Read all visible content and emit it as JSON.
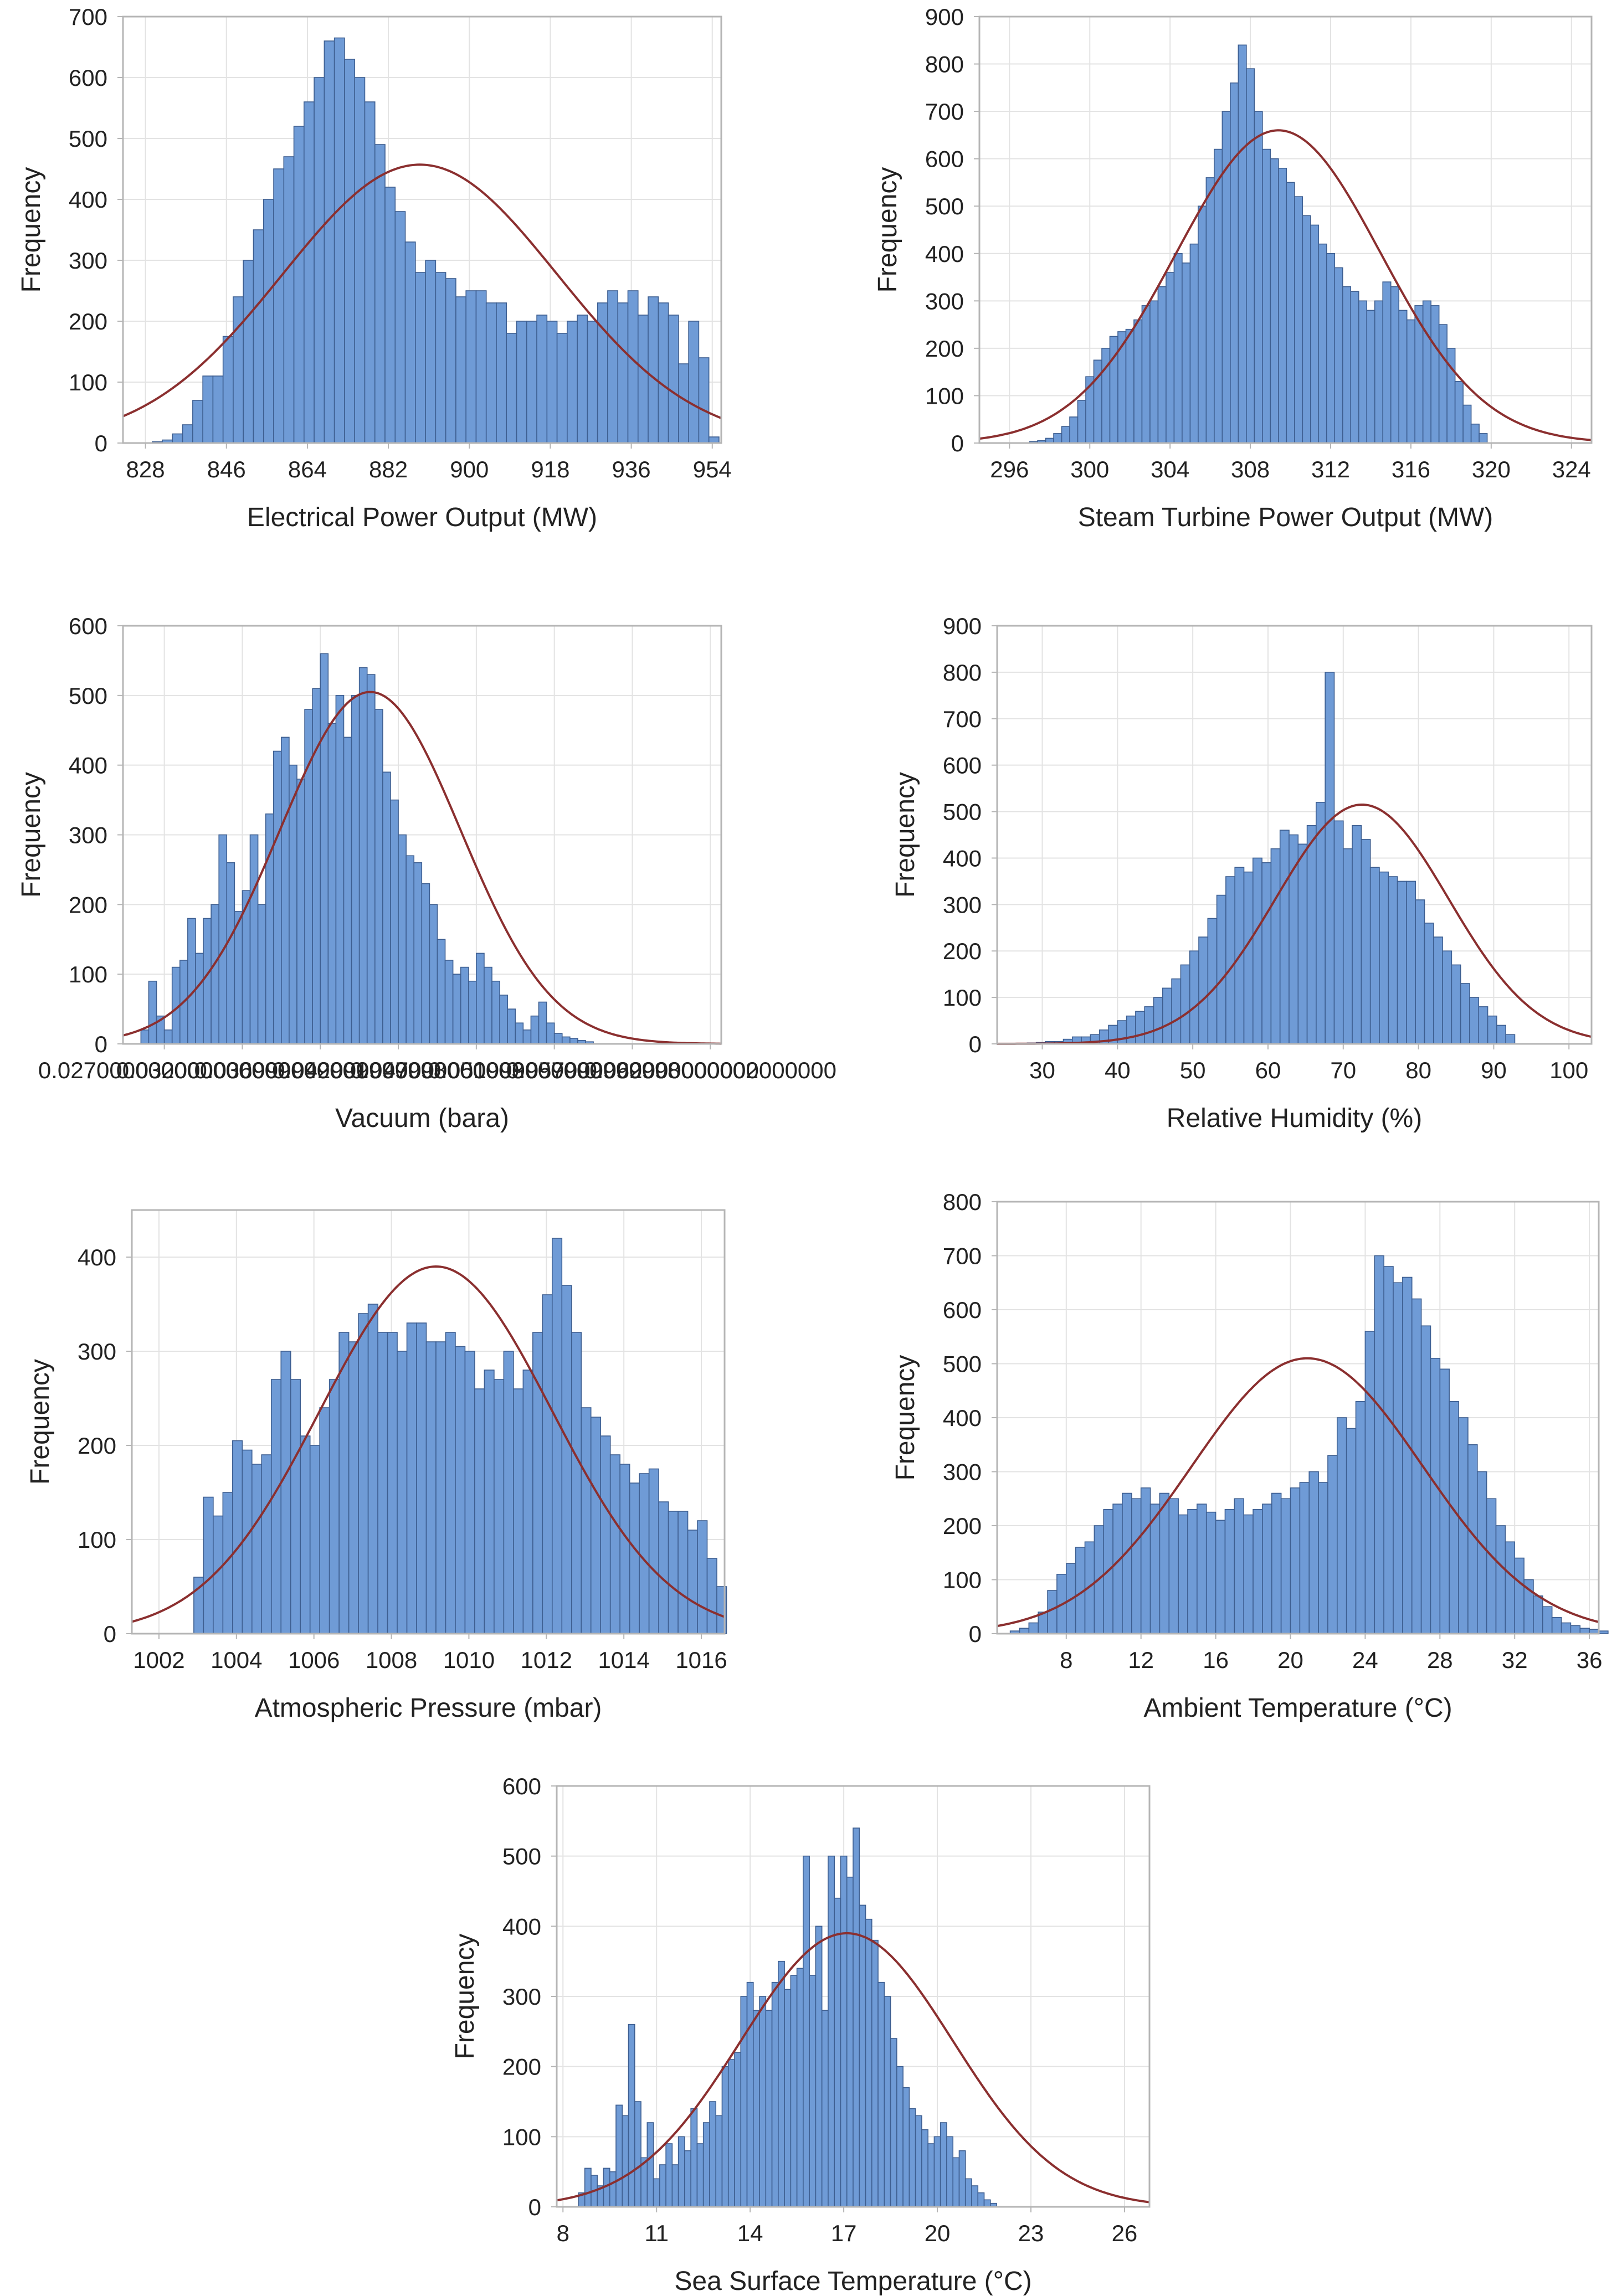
{
  "figure": {
    "colors": {
      "bar": "#6f9bd6",
      "bar_edge": "#3e5f91",
      "fit": "#8b2f2f",
      "grid": "#e3e3e3",
      "frame": "#b5b5b5",
      "text": "#222222"
    }
  },
  "chart_data": [
    {
      "type": "bar",
      "title": "",
      "xlabel": "Electrical Power Output (MW)",
      "ylabel": "Frequency",
      "xlim": [
        823,
        956
      ],
      "ylim": [
        0,
        700
      ],
      "xticks": [
        828,
        846,
        864,
        882,
        900,
        918,
        936,
        954
      ],
      "yticks": [
        0,
        100,
        200,
        300,
        400,
        500,
        600,
        700
      ],
      "bin_start": 829.5,
      "bin_width": 2.25,
      "values": [
        2,
        5,
        15,
        30,
        70,
        110,
        110,
        175,
        240,
        300,
        350,
        400,
        450,
        470,
        520,
        560,
        600,
        660,
        665,
        630,
        600,
        560,
        490,
        420,
        380,
        330,
        280,
        300,
        280,
        270,
        240,
        250,
        250,
        230,
        230,
        180,
        200,
        200,
        210,
        200,
        180,
        200,
        210,
        200,
        230,
        250,
        230,
        250,
        210,
        240,
        230,
        210,
        130,
        200,
        140,
        10
      ],
      "fit": {
        "mean": 889,
        "sd": 30.5,
        "peak": 457
      }
    },
    {
      "type": "bar",
      "title": "",
      "xlabel": "Steam Turbine Power Output (MW)",
      "ylabel": "Frequency",
      "xlim": [
        294.5,
        325
      ],
      "ylim": [
        0,
        900
      ],
      "xticks": [
        296,
        300,
        304,
        308,
        312,
        316,
        320,
        324
      ],
      "yticks": [
        0,
        100,
        200,
        300,
        400,
        500,
        600,
        700,
        800,
        900
      ],
      "bin_start": 297.0,
      "bin_width": 0.4,
      "values": [
        3,
        5,
        10,
        20,
        35,
        55,
        90,
        140,
        175,
        200,
        225,
        235,
        240,
        260,
        290,
        300,
        330,
        360,
        400,
        380,
        420,
        500,
        560,
        620,
        700,
        760,
        840,
        790,
        700,
        620,
        600,
        580,
        550,
        520,
        480,
        460,
        420,
        400,
        370,
        330,
        320,
        300,
        280,
        300,
        340,
        330,
        280,
        260,
        290,
        300,
        290,
        250,
        200,
        130,
        80,
        40,
        20
      ],
      "fit": {
        "mean": 309.4,
        "sd": 5.1,
        "peak": 660
      }
    },
    {
      "type": "bar",
      "title": "",
      "xlabel": "Vacuum (bara)",
      "ylabel": "Frequency",
      "xlim": [
        0.02435,
        0.0627
      ],
      "ylim": [
        0,
        600
      ],
      "xticks": [
        0.027,
        0.032,
        0.037,
        0.042,
        0.047,
        0.052,
        0.057,
        0.062
      ],
      "yticks": [
        0,
        100,
        200,
        300,
        400,
        500,
        600
      ],
      "bin_start": 0.0255,
      "bin_width": 0.0005,
      "values": [
        20,
        90,
        40,
        20,
        110,
        120,
        180,
        130,
        180,
        200,
        300,
        260,
        190,
        220,
        300,
        200,
        330,
        420,
        440,
        400,
        380,
        480,
        510,
        560,
        460,
        500,
        440,
        500,
        540,
        530,
        480,
        390,
        350,
        300,
        270,
        260,
        230,
        200,
        150,
        120,
        100,
        110,
        90,
        130,
        110,
        90,
        70,
        50,
        30,
        20,
        40,
        60,
        30,
        15,
        10,
        8,
        5,
        3
      ],
      "fit": {
        "mean": 0.0402,
        "sd": 0.0058,
        "peak": 505
      }
    },
    {
      "type": "bar",
      "title": "",
      "xlabel": "Relative Humidity (%)",
      "ylabel": "Frequency",
      "xlim": [
        24,
        103
      ],
      "ylim": [
        0,
        900
      ],
      "xticks": [
        30,
        40,
        50,
        60,
        70,
        80,
        90,
        100
      ],
      "yticks": [
        0,
        100,
        200,
        300,
        400,
        500,
        600,
        700,
        800,
        900
      ],
      "bin_start": 28.0,
      "bin_width": 1.2,
      "values": [
        2,
        3,
        5,
        5,
        10,
        15,
        15,
        20,
        30,
        40,
        50,
        60,
        70,
        80,
        100,
        120,
        140,
        170,
        200,
        230,
        270,
        320,
        360,
        380,
        370,
        400,
        390,
        420,
        460,
        450,
        430,
        470,
        520,
        800,
        480,
        420,
        470,
        440,
        380,
        370,
        360,
        350,
        350,
        310,
        260,
        230,
        200,
        170,
        130,
        100,
        80,
        60,
        40,
        20
      ],
      "fit": {
        "mean": 72.5,
        "sd": 11.5,
        "peak": 515
      }
    },
    {
      "type": "bar",
      "title": "",
      "xlabel": "Atmospheric Pressure (mbar)",
      "ylabel": "Frequency",
      "xlim": [
        1001.3,
        1016.6
      ],
      "ylim": [
        0,
        450
      ],
      "xticks": [
        1002,
        1004,
        1006,
        1008,
        1010,
        1012,
        1014,
        1016
      ],
      "yticks": [
        0,
        100,
        200,
        300,
        400
      ],
      "bin_start": 1002.9,
      "bin_width": 0.25,
      "values": [
        60,
        145,
        125,
        150,
        205,
        195,
        180,
        190,
        270,
        300,
        270,
        210,
        200,
        240,
        270,
        320,
        310,
        340,
        350,
        320,
        320,
        300,
        330,
        330,
        310,
        310,
        320,
        305,
        300,
        260,
        280,
        270,
        300,
        260,
        280,
        320,
        360,
        420,
        370,
        320,
        240,
        230,
        210,
        190,
        180,
        160,
        170,
        175,
        140,
        130,
        130,
        110,
        120,
        80,
        50
      ],
      "fit": {
        "mean": 1009.15,
        "sd": 3.0,
        "peak": 390
      }
    },
    {
      "type": "bar",
      "title": "",
      "xlabel": "Ambient Temperature (°C)",
      "ylabel": "Frequency",
      "xlim": [
        4.3,
        36.5
      ],
      "ylim": [
        0,
        800
      ],
      "xticks": [
        8,
        12,
        16,
        20,
        24,
        28,
        32,
        36
      ],
      "yticks": [
        0,
        100,
        200,
        300,
        400,
        500,
        600,
        700,
        800
      ],
      "bin_start": 5.0,
      "bin_width": 0.5,
      "values": [
        5,
        10,
        20,
        40,
        80,
        110,
        130,
        160,
        170,
        200,
        230,
        240,
        260,
        250,
        270,
        240,
        260,
        250,
        220,
        230,
        240,
        225,
        210,
        230,
        250,
        220,
        230,
        240,
        260,
        250,
        270,
        280,
        300,
        280,
        330,
        400,
        380,
        430,
        560,
        700,
        680,
        650,
        660,
        620,
        570,
        510,
        490,
        430,
        400,
        350,
        300,
        250,
        200,
        170,
        140,
        100,
        70,
        50,
        30,
        20,
        15,
        10,
        8,
        5
      ],
      "fit": {
        "mean": 20.9,
        "sd": 6.2,
        "peak": 510
      }
    },
    {
      "type": "bar",
      "title": "",
      "xlabel": "Sea Surface Temperature (°C)",
      "ylabel": "Frequency",
      "xlim": [
        7.8,
        26.8
      ],
      "ylim": [
        0,
        600
      ],
      "xticks": [
        8,
        11,
        14,
        17,
        20,
        23,
        26
      ],
      "yticks": [
        0,
        100,
        200,
        300,
        400,
        500,
        600
      ],
      "bin_start": 8.5,
      "bin_width": 0.2,
      "values": [
        20,
        55,
        45,
        30,
        55,
        50,
        145,
        130,
        260,
        150,
        70,
        120,
        40,
        60,
        90,
        60,
        100,
        80,
        140,
        90,
        120,
        150,
        130,
        200,
        210,
        220,
        300,
        320,
        280,
        300,
        280,
        320,
        350,
        310,
        330,
        340,
        500,
        330,
        400,
        280,
        500,
        440,
        500,
        470,
        540,
        430,
        410,
        380,
        320,
        300,
        240,
        200,
        170,
        140,
        130,
        110,
        90,
        100,
        120,
        100,
        70,
        80,
        40,
        30,
        20,
        10,
        5
      ],
      "fit": {
        "mean": 17.1,
        "sd": 3.4,
        "peak": 390
      }
    }
  ]
}
